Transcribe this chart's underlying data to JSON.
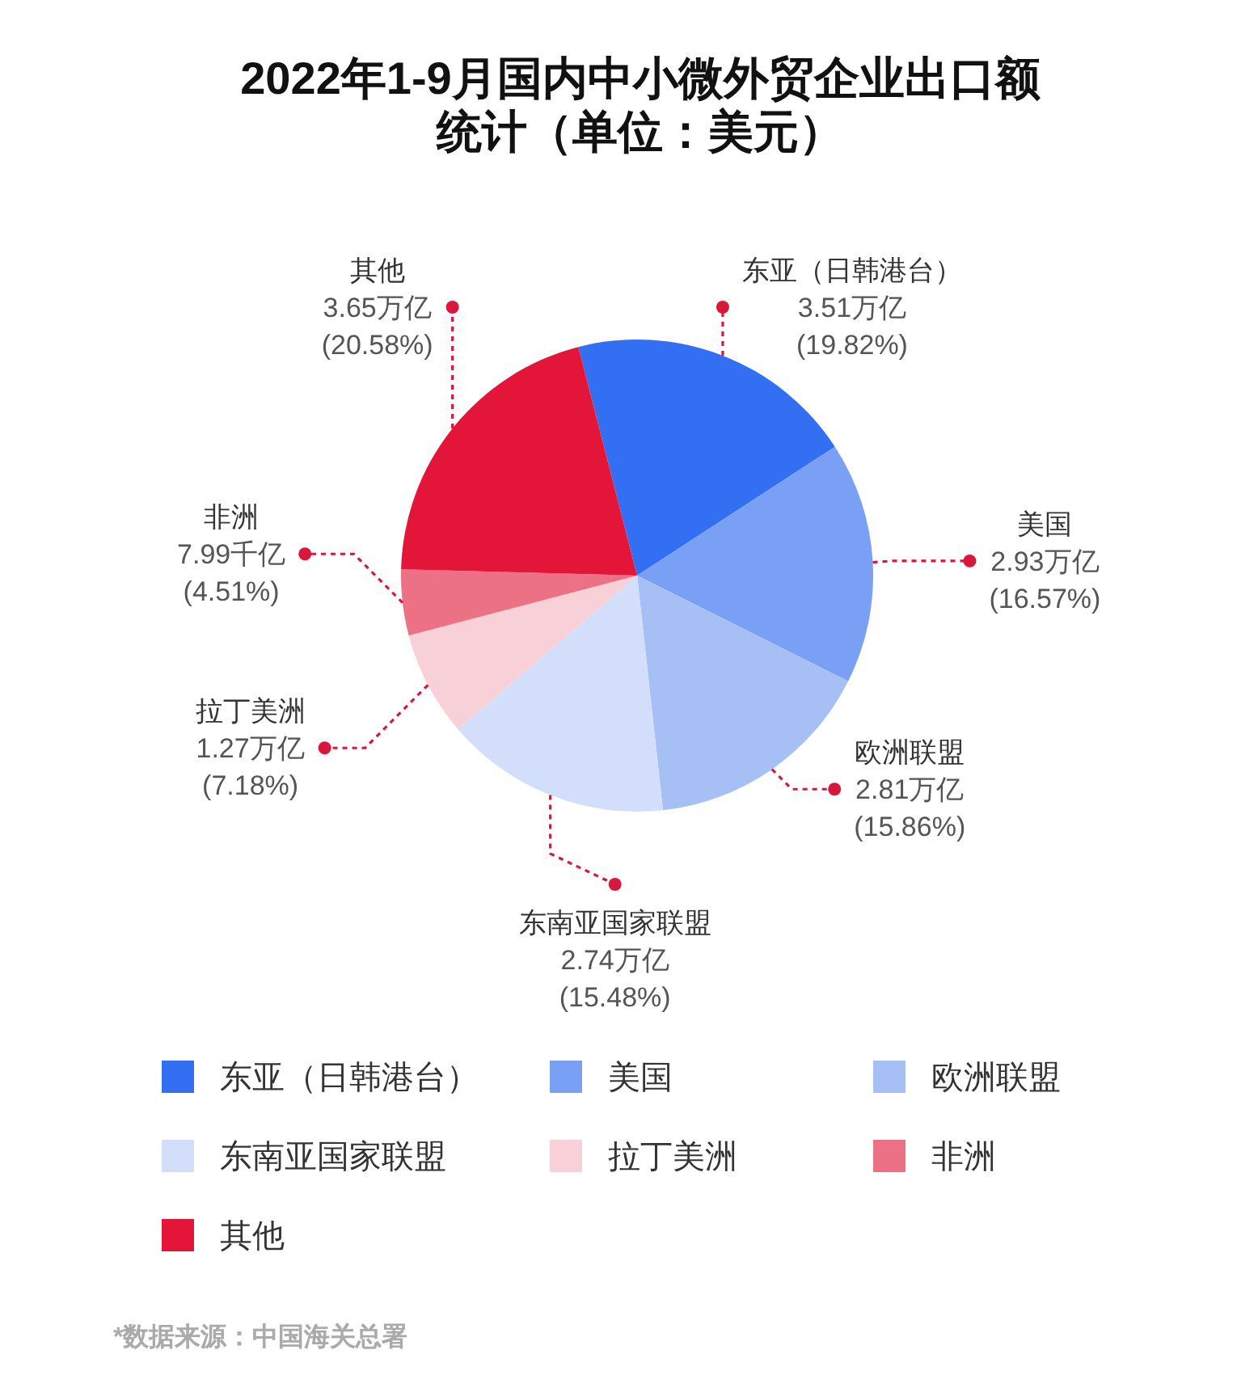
{
  "chart_data": {
    "type": "pie",
    "title": "2022年1-9月国内中小微外贸企业出口额统计（单位：美元）",
    "categories": [
      "东亚（日韩港台）",
      "美国",
      "欧洲联盟",
      "东南亚国家联盟",
      "拉丁美洲",
      "非洲",
      "其他"
    ],
    "values": [
      19.82,
      16.57,
      15.86,
      15.48,
      7.18,
      4.51,
      20.58
    ],
    "colors": [
      "#336ff2",
      "#7aa0f5",
      "#a6c0f6",
      "#d3dffa",
      "#f7d0d8",
      "#ed7185",
      "#e3163a"
    ],
    "value_labels": [
      "3.51万亿\n(19.82%)",
      "2.93万亿\n(16.57%)",
      "2.81万亿\n(15.86%)",
      "2.74万亿\n(15.48%)",
      "1.27万亿\n(7.18%)",
      "7.99千亿\n(4.51%)",
      "3.65万亿\n(20.58%)"
    ],
    "legend": "bottom",
    "annotations": [
      "*数据来源：中国海关总署"
    ]
  }
}
